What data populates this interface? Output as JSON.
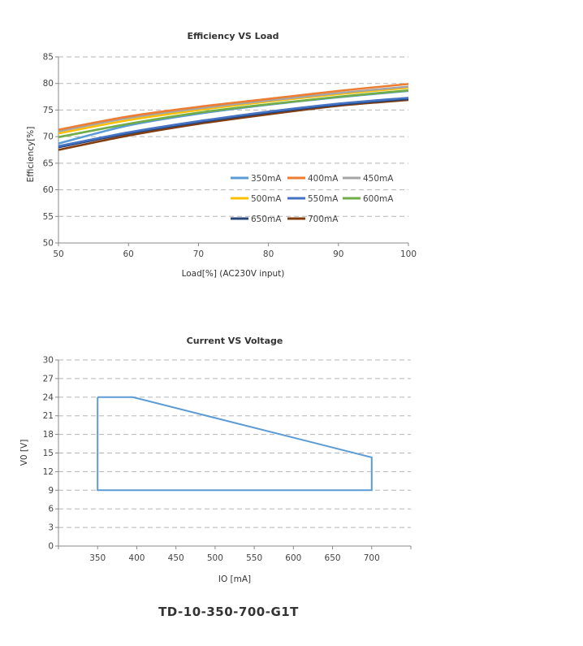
{
  "chart_data": [
    {
      "type": "line",
      "title": "Efficiency VS Load",
      "xlabel": "Load[%] (AC230V input)",
      "ylabel": "Efficiency[%]",
      "xlim": [
        50,
        100
      ],
      "ylim": [
        50,
        85
      ],
      "x_ticks": [
        "50",
        "60",
        "70",
        "80",
        "90",
        "100"
      ],
      "y_ticks": [
        "50",
        "55",
        "60",
        "65",
        "70",
        "75",
        "80",
        "85"
      ],
      "grid": "horizontal-dashed",
      "legend": "inside-lower-right",
      "x": [
        50,
        60,
        70,
        80,
        90,
        100
      ],
      "series": [
        {
          "name": "350mA",
          "color": "#5B9BD5",
          "values": [
            68.7,
            72.1,
            74.3,
            76.0,
            77.4,
            78.6
          ]
        },
        {
          "name": "400mA",
          "color": "#ED7D31",
          "values": [
            71.3,
            73.8,
            75.6,
            77.1,
            78.6,
            79.9
          ]
        },
        {
          "name": "450mA",
          "color": "#A5A5A5",
          "values": [
            71.0,
            73.5,
            75.3,
            76.8,
            78.2,
            79.4
          ]
        },
        {
          "name": "500mA",
          "color": "#FFC000",
          "values": [
            70.6,
            73.1,
            75.0,
            76.6,
            78.0,
            79.2
          ]
        },
        {
          "name": "550mA",
          "color": "#4472C4",
          "values": [
            68.2,
            70.8,
            72.9,
            74.7,
            76.2,
            77.3
          ]
        },
        {
          "name": "600mA",
          "color": "#70AD47",
          "values": [
            69.9,
            72.4,
            74.5,
            76.1,
            77.5,
            78.7
          ]
        },
        {
          "name": "650mA",
          "color": "#264478",
          "values": [
            68.0,
            70.6,
            72.7,
            74.5,
            76.0,
            77.1
          ]
        },
        {
          "name": "700mA",
          "color": "#843C0C",
          "values": [
            67.5,
            70.2,
            72.4,
            74.2,
            75.8,
            76.9
          ]
        }
      ]
    },
    {
      "type": "line",
      "title": "Current VS Voltage",
      "xlabel": "IO [mA]",
      "ylabel": "V0 [V]",
      "xlim": [
        300,
        750
      ],
      "ylim": [
        0,
        30
      ],
      "x_ticks": [
        "350",
        "400",
        "450",
        "500",
        "550",
        "600",
        "650",
        "700"
      ],
      "y_ticks": [
        "0",
        "3",
        "6",
        "9",
        "12",
        "15",
        "18",
        "21",
        "24",
        "27",
        "30"
      ],
      "grid": "horizontal-dashed",
      "color": "#5B9BD5",
      "series": [
        {
          "values": [
            [
              350,
              24
            ],
            [
              395,
              24
            ],
            [
              700,
              14.3
            ],
            [
              700,
              9
            ],
            [
              350,
              9
            ],
            [
              350,
              24
            ]
          ]
        }
      ]
    }
  ],
  "footer": {
    "model": "TD-10-350-700-G1T"
  }
}
